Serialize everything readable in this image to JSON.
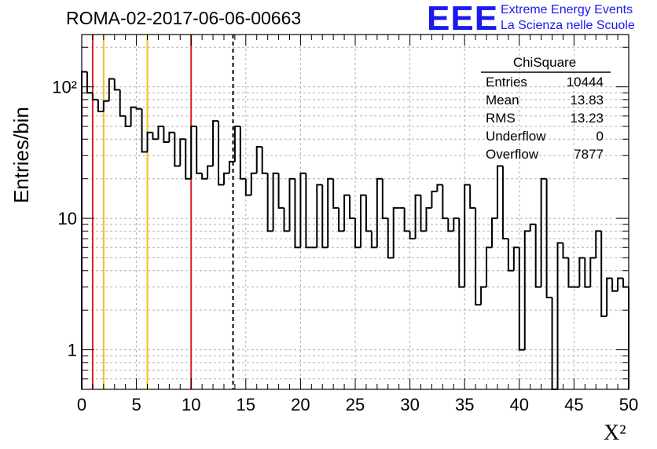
{
  "title": "ROMA-02-2017-06-06-00663",
  "logo": {
    "mark": "EEE",
    "line1": "Extreme Energy Events",
    "line2": "La Scienza nelle Scuole",
    "color": "#1a1aee"
  },
  "stats": {
    "name": "ChiSquare",
    "rows": [
      {
        "label": "Entries",
        "value": "10444"
      },
      {
        "label": "Mean",
        "value": "13.83"
      },
      {
        "label": "RMS",
        "value": "13.23"
      },
      {
        "label": "Underflow",
        "value": "0"
      },
      {
        "label": "Overflow",
        "value": "7877"
      }
    ]
  },
  "chart_data": {
    "type": "bar",
    "histogram": true,
    "xlabel": "X²",
    "ylabel": "Entries/bin",
    "xlim": [
      0,
      50
    ],
    "ylim": [
      0.5,
      250
    ],
    "log_y": true,
    "grid": true,
    "bin_width": 0.5,
    "x_ticks": [
      "0",
      "5",
      "10",
      "15",
      "20",
      "25",
      "30",
      "35",
      "40",
      "45",
      "50"
    ],
    "y_ticks": [
      {
        "value": 1,
        "label": "1"
      },
      {
        "value": 10,
        "label": "10"
      },
      {
        "value": 100,
        "label": "10²"
      }
    ],
    "values": [
      130,
      90,
      80,
      65,
      78,
      115,
      95,
      60,
      50,
      70,
      68,
      32,
      45,
      40,
      50,
      38,
      45,
      25,
      40,
      20,
      50,
      22,
      20,
      25,
      55,
      18,
      22,
      27,
      50,
      20,
      15,
      22,
      35,
      22,
      8,
      22,
      12,
      8,
      20,
      6,
      22,
      6,
      6,
      18,
      6,
      20,
      12,
      8,
      15,
      10,
      6,
      15,
      8,
      6,
      20,
      10,
      5,
      12,
      12,
      8,
      7,
      15,
      8,
      12,
      16,
      18,
      10,
      8,
      10,
      3,
      18,
      12,
      2.2,
      3,
      6,
      10,
      25,
      7,
      4,
      6,
      1,
      8,
      9,
      3,
      20,
      2.5,
      0.5,
      6.5,
      5,
      3,
      3,
      5,
      3,
      5,
      8,
      1.8,
      3.5,
      2.8,
      3.5,
      3
    ],
    "vertical_lines": [
      {
        "x": 1,
        "color": "#dd2020",
        "style": "solid"
      },
      {
        "x": 2,
        "color": "#f0c020",
        "style": "solid"
      },
      {
        "x": 6,
        "color": "#f0c020",
        "style": "solid"
      },
      {
        "x": 10,
        "color": "#dd2020",
        "style": "solid"
      },
      {
        "x": 13.83,
        "color": "#000000",
        "style": "dashed"
      }
    ]
  }
}
